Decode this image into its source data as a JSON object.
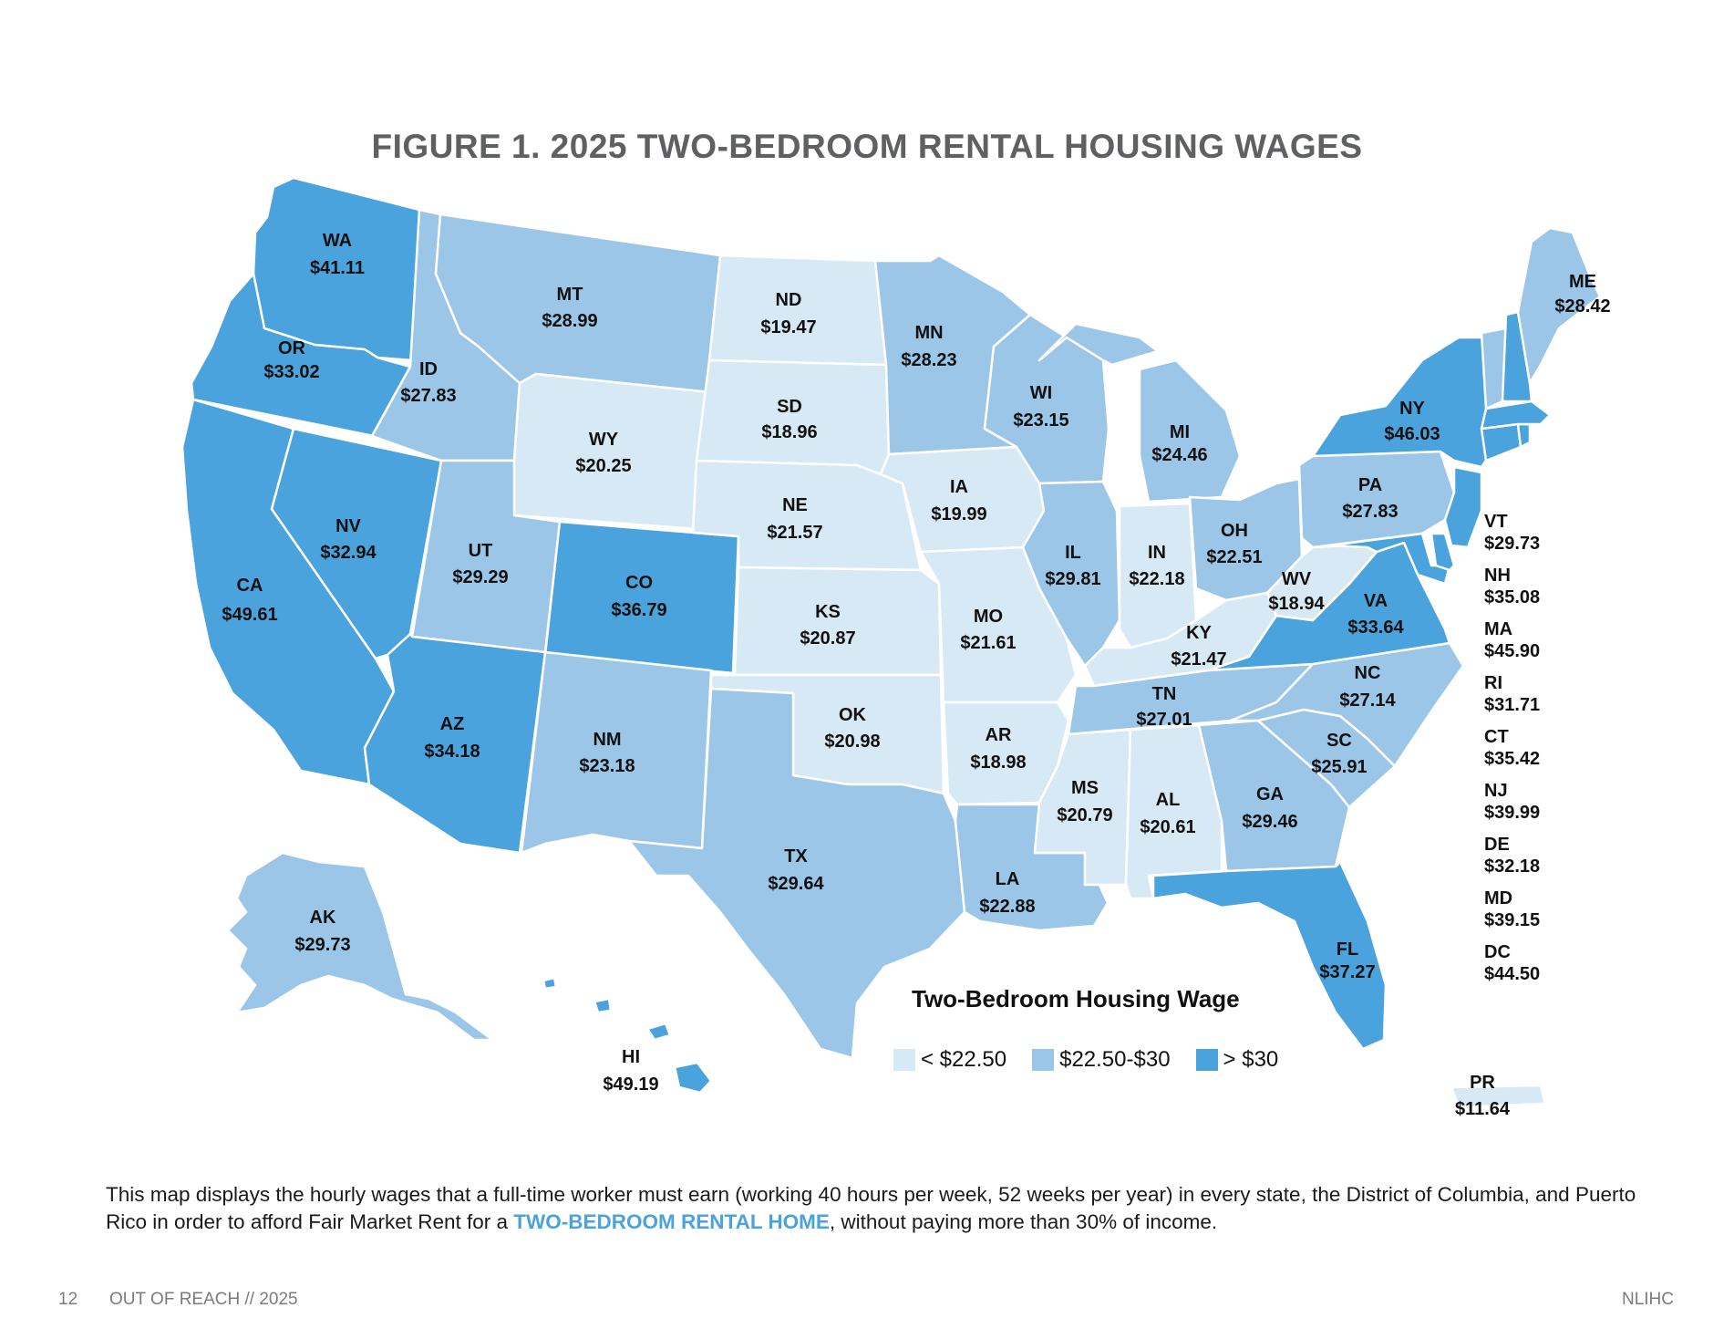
{
  "title": "FIGURE 1. 2025 TWO-BEDROOM RENTAL HOUSING WAGES",
  "colors": {
    "low": "#d8e9f6",
    "mid": "#9cc6e8",
    "high": "#4aa3dc",
    "title_gray": "#5f6063",
    "highlight": "#4aa3dc"
  },
  "states": {
    "WA": {
      "abbr": "WA",
      "wage": "$41.11",
      "category": "high"
    },
    "OR": {
      "abbr": "OR",
      "wage": "$33.02",
      "category": "high"
    },
    "CA": {
      "abbr": "CA",
      "wage": "$49.61",
      "category": "high"
    },
    "NV": {
      "abbr": "NV",
      "wage": "$32.94",
      "category": "high"
    },
    "ID": {
      "abbr": "ID",
      "wage": "$27.83",
      "category": "mid"
    },
    "MT": {
      "abbr": "MT",
      "wage": "$28.99",
      "category": "mid"
    },
    "WY": {
      "abbr": "WY",
      "wage": "$20.25",
      "category": "low"
    },
    "UT": {
      "abbr": "UT",
      "wage": "$29.29",
      "category": "mid"
    },
    "AZ": {
      "abbr": "AZ",
      "wage": "$34.18",
      "category": "high"
    },
    "CO": {
      "abbr": "CO",
      "wage": "$36.79",
      "category": "high"
    },
    "NM": {
      "abbr": "NM",
      "wage": "$23.18",
      "category": "mid"
    },
    "ND": {
      "abbr": "ND",
      "wage": "$19.47",
      "category": "low"
    },
    "SD": {
      "abbr": "SD",
      "wage": "$18.96",
      "category": "low"
    },
    "NE": {
      "abbr": "NE",
      "wage": "$21.57",
      "category": "low"
    },
    "KS": {
      "abbr": "KS",
      "wage": "$20.87",
      "category": "low"
    },
    "OK": {
      "abbr": "OK",
      "wage": "$20.98",
      "category": "low"
    },
    "TX": {
      "abbr": "TX",
      "wage": "$29.64",
      "category": "mid"
    },
    "MN": {
      "abbr": "MN",
      "wage": "$28.23",
      "category": "mid"
    },
    "IA": {
      "abbr": "IA",
      "wage": "$19.99",
      "category": "low"
    },
    "MO": {
      "abbr": "MO",
      "wage": "$21.61",
      "category": "low"
    },
    "AR": {
      "abbr": "AR",
      "wage": "$18.98",
      "category": "low"
    },
    "LA": {
      "abbr": "LA",
      "wage": "$22.88",
      "category": "mid"
    },
    "WI": {
      "abbr": "WI",
      "wage": "$23.15",
      "category": "mid"
    },
    "IL": {
      "abbr": "IL",
      "wage": "$29.81",
      "category": "mid"
    },
    "MI": {
      "abbr": "MI",
      "wage": "$24.46",
      "category": "mid"
    },
    "IN": {
      "abbr": "IN",
      "wage": "$22.18",
      "category": "low"
    },
    "OH": {
      "abbr": "OH",
      "wage": "$22.51",
      "category": "mid"
    },
    "KY": {
      "abbr": "KY",
      "wage": "$21.47",
      "category": "low"
    },
    "TN": {
      "abbr": "TN",
      "wage": "$27.01",
      "category": "mid"
    },
    "MS": {
      "abbr": "MS",
      "wage": "$20.79",
      "category": "low"
    },
    "AL": {
      "abbr": "AL",
      "wage": "$20.61",
      "category": "low"
    },
    "GA": {
      "abbr": "GA",
      "wage": "$29.46",
      "category": "mid"
    },
    "FL": {
      "abbr": "FL",
      "wage": "$37.27",
      "category": "high"
    },
    "SC": {
      "abbr": "SC",
      "wage": "$25.91",
      "category": "mid"
    },
    "NC": {
      "abbr": "NC",
      "wage": "$27.14",
      "category": "mid"
    },
    "VA": {
      "abbr": "VA",
      "wage": "$33.64",
      "category": "high"
    },
    "WV": {
      "abbr": "WV",
      "wage": "$18.94",
      "category": "low"
    },
    "PA": {
      "abbr": "PA",
      "wage": "$27.83",
      "category": "mid"
    },
    "NY": {
      "abbr": "NY",
      "wage": "$46.03",
      "category": "high"
    },
    "ME": {
      "abbr": "ME",
      "wage": "$28.42",
      "category": "mid"
    },
    "AK": {
      "abbr": "AK",
      "wage": "$29.73",
      "category": "mid"
    },
    "HI": {
      "abbr": "HI",
      "wage": "$49.19",
      "category": "high"
    },
    "PR": {
      "abbr": "PR",
      "wage": "$11.64",
      "category": "low"
    }
  },
  "small_states": [
    {
      "abbr": "VT",
      "wage": "$29.73",
      "category": "mid"
    },
    {
      "abbr": "NH",
      "wage": "$35.08",
      "category": "high"
    },
    {
      "abbr": "MA",
      "wage": "$45.90",
      "category": "high"
    },
    {
      "abbr": "RI",
      "wage": "$31.71",
      "category": "high"
    },
    {
      "abbr": "CT",
      "wage": "$35.42",
      "category": "high"
    },
    {
      "abbr": "NJ",
      "wage": "$39.99",
      "category": "high"
    },
    {
      "abbr": "DE",
      "wage": "$32.18",
      "category": "high"
    },
    {
      "abbr": "MD",
      "wage": "$39.15",
      "category": "high"
    },
    {
      "abbr": "DC",
      "wage": "$44.50",
      "category": "high"
    }
  ],
  "legend": {
    "title": "Two-Bedroom Housing Wage",
    "items": [
      {
        "label": "< $22.50",
        "category": "low"
      },
      {
        "label": "$22.50-$30",
        "category": "mid"
      },
      {
        "label": "> $30",
        "category": "high"
      }
    ]
  },
  "caption": {
    "before": "This map displays the hourly wages that a full-time worker must earn (working 40 hours per week, 52 weeks per year) in every state, the District of Columbia, and Puerto Rico in order to afford Fair Market Rent for a ",
    "highlight": "TWO-BEDROOM RENTAL HOME",
    "after": ", without paying more than 30% of income."
  },
  "footer": {
    "page_number": "12",
    "publication": "OUT OF REACH // 2025",
    "organization": "NLIHC"
  }
}
